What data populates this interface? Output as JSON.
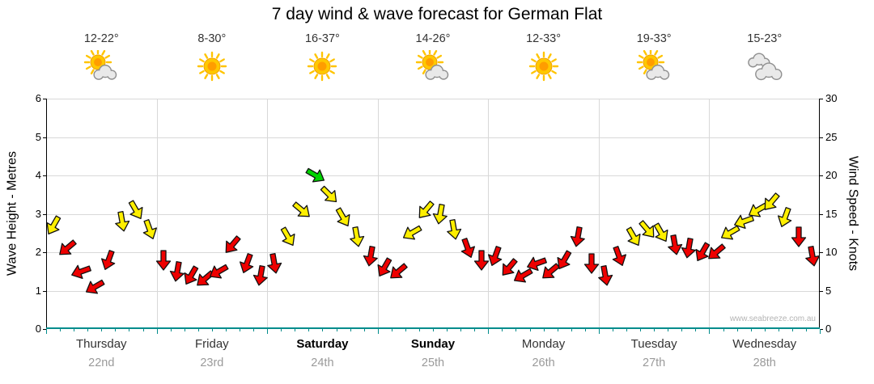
{
  "title": "7 day wind & wave forecast for German Flat",
  "watermark": "www.seabreeze.com.au",
  "days": [
    {
      "name": "Thursday",
      "date": "22nd",
      "temp": "12-22°",
      "icon": "partly-cloudy",
      "emphasis": false
    },
    {
      "name": "Friday",
      "date": "23rd",
      "temp": "8-30°",
      "icon": "sunny",
      "emphasis": false
    },
    {
      "name": "Saturday",
      "date": "24th",
      "temp": "16-37°",
      "icon": "sunny",
      "emphasis": true
    },
    {
      "name": "Sunday",
      "date": "25th",
      "temp": "14-26°",
      "icon": "partly-cloudy",
      "emphasis": true
    },
    {
      "name": "Monday",
      "date": "26th",
      "temp": "12-33°",
      "icon": "sunny",
      "emphasis": false
    },
    {
      "name": "Tuesday",
      "date": "27th",
      "temp": "19-33°",
      "icon": "partly-cloudy",
      "emphasis": false
    },
    {
      "name": "Wednesday",
      "date": "28th",
      "temp": "15-23°",
      "icon": "cloudy",
      "emphasis": false
    }
  ],
  "chart_data": {
    "type": "scatter",
    "marker": "wind-arrow",
    "title": "7 day wind & wave forecast for German Flat",
    "x_axis": {
      "days": [
        "Thursday 22nd",
        "Friday 23rd",
        "Saturday 24th",
        "Sunday 25th",
        "Monday 26th",
        "Tuesday 27th",
        "Wednesday 28th"
      ],
      "slots_per_day": 8
    },
    "y_left": {
      "label": "Wave Height - Metres",
      "min": 0,
      "max": 6,
      "ticks": [
        0,
        1,
        2,
        3,
        4,
        5,
        6
      ]
    },
    "y_right": {
      "label": "Wind Speed - Knots",
      "min": 0,
      "max": 30,
      "ticks": [
        0,
        5,
        10,
        15,
        20,
        25,
        30
      ]
    },
    "grid": true,
    "series": [
      {
        "name": "Wind speed (knots)",
        "speeds_knots": [
          13.5,
          10.5,
          7.5,
          5.5,
          9,
          14,
          15.5,
          13,
          9,
          7.5,
          7,
          6.5,
          7.5,
          11,
          8.5,
          7,
          8.5,
          12,
          15.5,
          20,
          17.5,
          14.5,
          12,
          9.5,
          8,
          7.5,
          12.5,
          15.5,
          15,
          13,
          10.5,
          9,
          9.5,
          8,
          7,
          8.5,
          7.5,
          9,
          12,
          8.5,
          7,
          9.5,
          12,
          13,
          12.5,
          11,
          10.5,
          10,
          10,
          12.5,
          14,
          15.5,
          16.5,
          14.5,
          12,
          9.5
        ],
        "directions_deg": [
          120,
          140,
          160,
          150,
          110,
          80,
          60,
          70,
          90,
          100,
          120,
          140,
          150,
          130,
          110,
          100,
          80,
          60,
          40,
          30,
          45,
          60,
          80,
          100,
          120,
          140,
          150,
          130,
          100,
          80,
          70,
          90,
          110,
          130,
          150,
          160,
          140,
          120,
          100,
          90,
          80,
          70,
          60,
          50,
          60,
          80,
          100,
          120,
          140,
          150,
          160,
          150,
          130,
          110,
          90,
          80
        ],
        "colors": [
          "yellow",
          "red",
          "red",
          "red",
          "red",
          "yellow",
          "yellow",
          "yellow",
          "red",
          "red",
          "red",
          "red",
          "red",
          "red",
          "red",
          "red",
          "red",
          "yellow",
          "yellow",
          "green",
          "yellow",
          "yellow",
          "yellow",
          "red",
          "red",
          "red",
          "yellow",
          "yellow",
          "yellow",
          "yellow",
          "red",
          "red",
          "red",
          "red",
          "red",
          "red",
          "red",
          "red",
          "red",
          "red",
          "red",
          "red",
          "yellow",
          "yellow",
          "yellow",
          "red",
          "red",
          "red",
          "red",
          "yellow",
          "yellow",
          "yellow",
          "yellow",
          "yellow",
          "red",
          "red"
        ]
      }
    ],
    "color_map": {
      "red": "#ee0000",
      "yellow": "#ffef00",
      "green": "#00d400"
    },
    "axis_colors": {
      "x_axis": "#008c8c",
      "y_axis": "#000000",
      "gridline": "#d8d8d8"
    }
  }
}
